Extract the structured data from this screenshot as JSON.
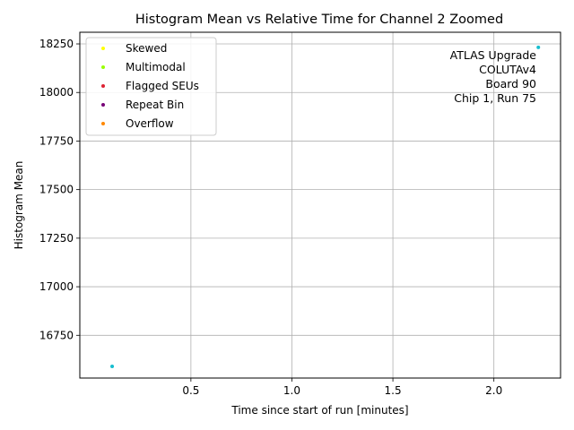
{
  "chart_data": {
    "type": "scatter",
    "title": "Histogram Mean vs Relative Time for Channel 2 Zoomed",
    "xlabel": "Time since start of run [minutes]",
    "ylabel": "Histogram Mean",
    "xlim": [
      -0.05,
      2.33
    ],
    "ylim": [
      16530,
      18310
    ],
    "xticks": [
      0.5,
      1.0,
      1.5,
      2.0
    ],
    "xtick_labels": [
      "0.5",
      "1.0",
      "1.5",
      "2.0"
    ],
    "yticks": [
      16750,
      17000,
      17250,
      17500,
      17750,
      18000,
      18250
    ],
    "ytick_labels": [
      "16750",
      "17000",
      "17250",
      "17500",
      "17750",
      "18000",
      "18250"
    ],
    "grid": true,
    "legend_position": "top-left",
    "series": [
      {
        "name": "",
        "color": "#17becf",
        "points": [
          {
            "x": 0.11,
            "y": 16590
          },
          {
            "x": 2.22,
            "y": 18232
          }
        ]
      },
      {
        "name": "Skewed",
        "color": "#ffff00",
        "points": []
      },
      {
        "name": "Multimodal",
        "color": "#99ff00",
        "points": []
      },
      {
        "name": "Flagged SEUs",
        "color": "#dd2233",
        "points": []
      },
      {
        "name": "Repeat Bin",
        "color": "#770077",
        "points": []
      },
      {
        "name": "Overflow",
        "color": "#ff8800",
        "points": []
      }
    ],
    "annotation": [
      "ATLAS Upgrade",
      "COLUTAv4",
      "Board 90",
      "Chip 1, Run 75"
    ]
  }
}
